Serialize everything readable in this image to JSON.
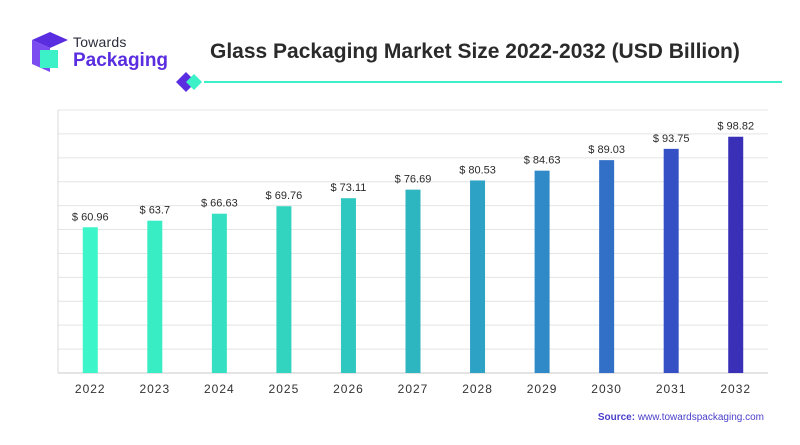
{
  "brand": {
    "line1": "Towards",
    "line2": "Packaging",
    "colors": {
      "purple": "#5a2ee0",
      "teal": "#3cf0c8",
      "dark": "#2b2b3a"
    }
  },
  "source": {
    "label": "Source:",
    "url": "www.towardspackaging.com"
  },
  "chart_data": {
    "type": "bar",
    "title": "Glass Packaging Market Size 2022-2032 (USD Billion)",
    "categories": [
      "2022",
      "2023",
      "2024",
      "2025",
      "2026",
      "2027",
      "2028",
      "2029",
      "2030",
      "2031",
      "2032"
    ],
    "values": [
      60.96,
      63.7,
      66.63,
      69.76,
      73.11,
      76.69,
      80.53,
      84.63,
      89.03,
      93.75,
      98.82
    ],
    "data_labels": [
      "$ 60.96",
      "$ 63.7",
      "$ 66.63",
      "$ 69.76",
      "$ 73.11",
      "$ 76.69",
      "$ 80.53",
      "$ 84.63",
      "$ 89.03",
      "$ 93.75",
      "$ 98.82"
    ],
    "bar_colors": [
      "#3cf5c8",
      "#38ecc4",
      "#35e0c2",
      "#32d4c0",
      "#2fc8c0",
      "#2db6c0",
      "#2ea2c4",
      "#308ac8",
      "#3270c8",
      "#3450c4",
      "#3a30b8"
    ],
    "ylim": [
      0,
      110
    ],
    "grid": true,
    "xlabel": "",
    "ylabel": ""
  }
}
